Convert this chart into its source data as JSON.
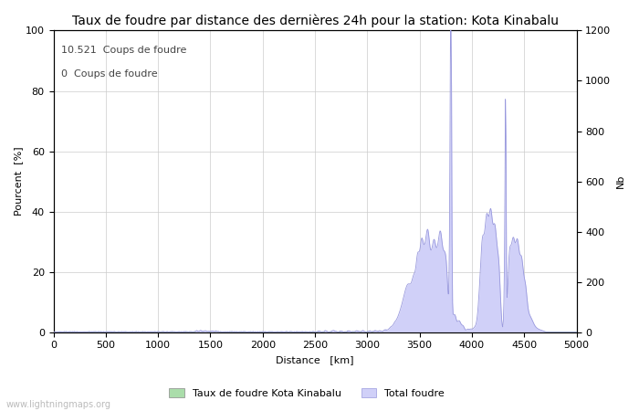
{
  "title": "Taux de foudre par distance des dernières 24h pour la station: Kota Kinabalu",
  "xlabel": "Distance   [km]",
  "ylabel_left": "Pourcent  [%]",
  "ylabel_right": "Nb",
  "annotation_line1": "10.521  Coups de foudre",
  "annotation_line2": "0  Coups de foudre",
  "legend_label1": "Taux de foudre Kota Kinabalu",
  "legend_label2": "Total foudre",
  "watermark": "www.lightningmaps.org",
  "xlim": [
    0,
    5000
  ],
  "ylim_left": [
    0,
    100
  ],
  "ylim_right": [
    0,
    1200
  ],
  "xticks": [
    0,
    500,
    1000,
    1500,
    2000,
    2500,
    3000,
    3500,
    4000,
    4500,
    5000
  ],
  "yticks_left": [
    0,
    20,
    40,
    60,
    80,
    100
  ],
  "yticks_right": [
    0,
    200,
    400,
    600,
    800,
    1000,
    1200
  ],
  "fill_color_green": "#aaddaa",
  "fill_color_blue": "#d0d0f8",
  "line_color": "#9999dd",
  "background_color": "#ffffff",
  "grid_color": "#cccccc",
  "title_fontsize": 10,
  "label_fontsize": 8,
  "tick_fontsize": 8,
  "fig_width": 7.0,
  "fig_height": 4.5,
  "dpi": 100
}
